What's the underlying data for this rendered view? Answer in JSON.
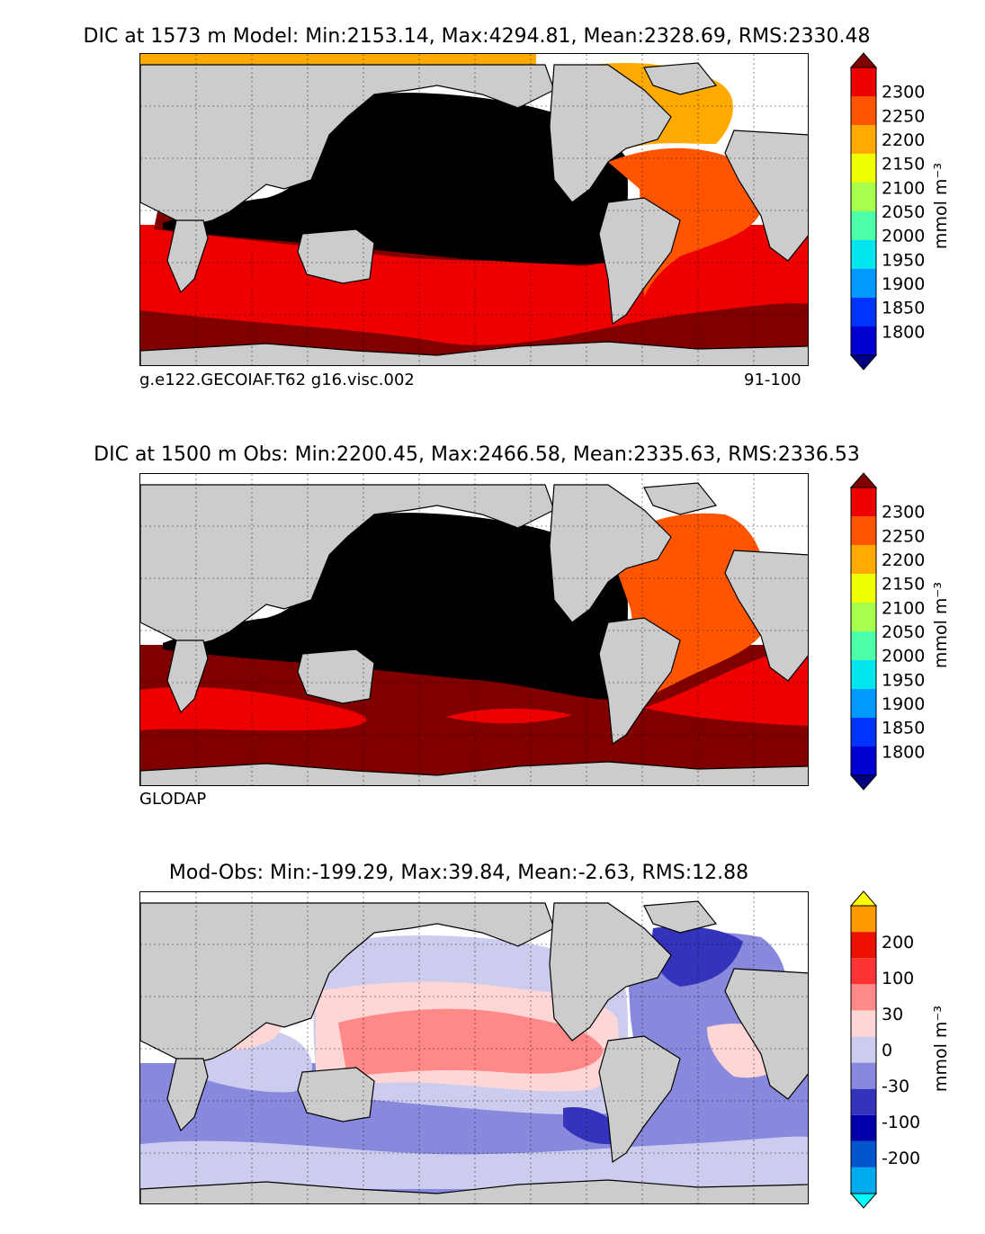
{
  "panels": [
    {
      "title": "DIC at 1573 m Model: Min:2153.14, Max:4294.81, Mean:2328.69, RMS:2330.48",
      "caption_left": "g.e122.GECOIAF.T62 g16.visc.002",
      "caption_right": "91-100",
      "colorbar": {
        "ticks": [
          "1800",
          "1850",
          "1900",
          "1950",
          "2000",
          "2050",
          "2100",
          "2150",
          "2200",
          "2250",
          "2300"
        ],
        "colors": [
          "#000080",
          "#0000d0",
          "#0033ff",
          "#0099ff",
          "#00e5ee",
          "#4dffa6",
          "#a6ff4d",
          "#eeff00",
          "#ffaa00",
          "#ff5500",
          "#ee0000",
          "#800000"
        ],
        "unit": "mmol m⁻³"
      }
    },
    {
      "title": "DIC at 1500 m Obs: Min:2200.45, Max:2466.58, Mean:2335.63, RMS:2336.53",
      "caption_left": "GLODAP",
      "caption_right": "",
      "colorbar": {
        "ticks": [
          "1800",
          "1850",
          "1900",
          "1950",
          "2000",
          "2050",
          "2100",
          "2150",
          "2200",
          "2250",
          "2300"
        ],
        "colors": [
          "#000080",
          "#0000d0",
          "#0033ff",
          "#0099ff",
          "#00e5ee",
          "#4dffa6",
          "#a6ff4d",
          "#eeff00",
          "#ffaa00",
          "#ff5500",
          "#ee0000",
          "#800000"
        ],
        "unit": "mmol m⁻³"
      }
    },
    {
      "title": "Mod-Obs: Min:-199.29, Max:39.84, Mean:-2.63, RMS:12.88",
      "caption_left": "",
      "caption_right": "",
      "colorbar": {
        "ticks": [
          "-200",
          "-100",
          "-30",
          "0",
          "30",
          "100",
          "200"
        ],
        "colors": [
          "#00ffff",
          "#00aaee",
          "#0055cc",
          "#0000aa",
          "#3333bb",
          "#8888dd",
          "#ccccee",
          "#ffd6d6",
          "#ff8888",
          "#ff3333",
          "#ee1100",
          "#ff9900",
          "#ffff00"
        ],
        "unit": "mmol m⁻³"
      }
    }
  ]
}
